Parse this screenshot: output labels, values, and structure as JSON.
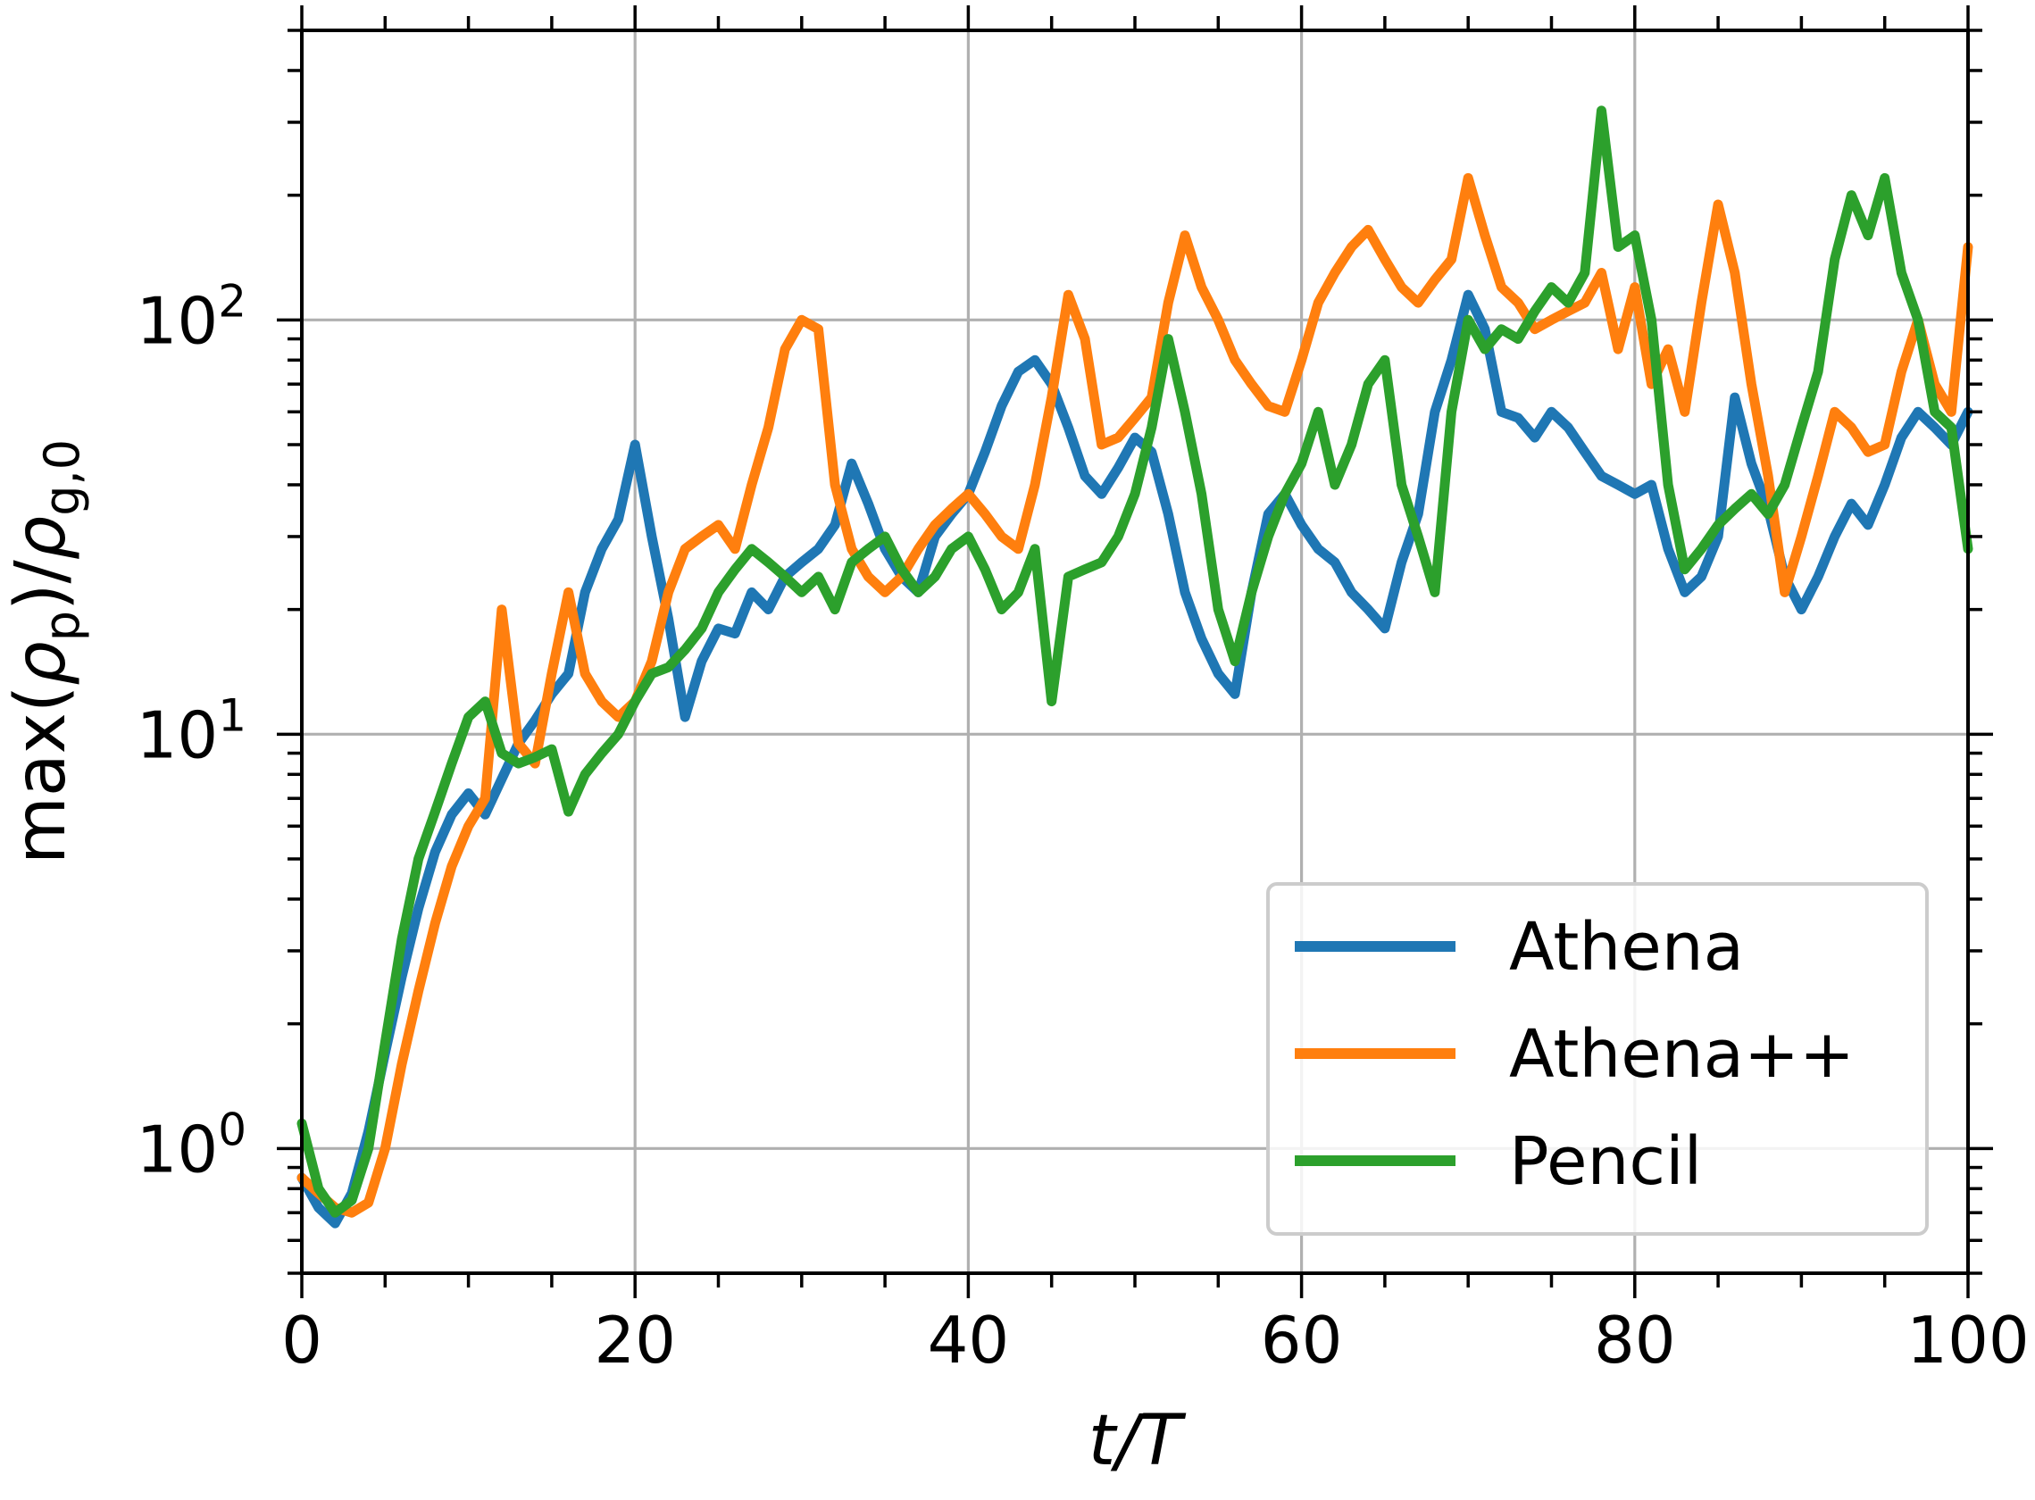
{
  "chart_data": {
    "type": "line",
    "title": "",
    "xlabel": "t/T",
    "ylabel": "max(ρ_p)/ρ_g,0",
    "xlim": [
      0,
      100
    ],
    "ylim": [
      0.5,
      500
    ],
    "yscale": "log",
    "grid": true,
    "legend_position": "lower-right",
    "x_ticks": [
      "0",
      "20",
      "40",
      "60",
      "80",
      "100"
    ],
    "y_ticks": [
      {
        "base": "10",
        "exp": "0"
      },
      {
        "base": "10",
        "exp": "1"
      },
      {
        "base": "10",
        "exp": "2"
      }
    ],
    "x": [
      0,
      1,
      2,
      3,
      4,
      5,
      6,
      7,
      8,
      9,
      10,
      11,
      12,
      13,
      14,
      15,
      16,
      17,
      18,
      19,
      20,
      21,
      22,
      23,
      24,
      25,
      26,
      27,
      28,
      29,
      30,
      31,
      32,
      33,
      34,
      35,
      36,
      37,
      38,
      39,
      40,
      41,
      42,
      43,
      44,
      45,
      46,
      47,
      48,
      49,
      50,
      51,
      52,
      53,
      54,
      55,
      56,
      57,
      58,
      59,
      60,
      61,
      62,
      63,
      64,
      65,
      66,
      67,
      68,
      69,
      70,
      71,
      72,
      73,
      74,
      75,
      76,
      77,
      78,
      79,
      80,
      81,
      82,
      83,
      84,
      85,
      86,
      87,
      88,
      89,
      90,
      91,
      92,
      93,
      94,
      95,
      96,
      97,
      98,
      99,
      100
    ],
    "series": [
      {
        "name": "Athena",
        "color": "#1f77b4",
        "values": [
          0.85,
          0.72,
          0.66,
          0.78,
          1.1,
          1.7,
          2.6,
          3.8,
          5.2,
          6.4,
          7.2,
          6.4,
          7.8,
          9.5,
          10.8,
          12.5,
          14.0,
          22.0,
          28.0,
          33.0,
          50.0,
          30.0,
          19.0,
          11.0,
          15.0,
          18.0,
          17.5,
          22.0,
          20.0,
          24.0,
          26.0,
          28.0,
          32.0,
          45.0,
          36.0,
          28.0,
          24.0,
          22.0,
          30.0,
          34.0,
          38.0,
          48.0,
          62.0,
          75.0,
          80.0,
          70.0,
          55.0,
          42.0,
          38.0,
          44.0,
          52.0,
          48.0,
          34.0,
          22.0,
          17.0,
          14.0,
          12.5,
          22.0,
          34.0,
          38.0,
          32.0,
          28.0,
          26.0,
          22.0,
          20.0,
          18.0,
          26.0,
          34.0,
          60.0,
          80.0,
          115.0,
          95.0,
          60.0,
          58.0,
          52.0,
          60.0,
          55.0,
          48.0,
          42.0,
          40.0,
          38.0,
          40.0,
          28.0,
          22.0,
          24.0,
          30.0,
          65.0,
          45.0,
          35.0,
          24.0,
          20.0,
          24.0,
          30.0,
          36.0,
          32.0,
          40.0,
          52.0,
          60.0,
          55.0,
          50.0,
          60.0
        ]
      },
      {
        "name": "Athena++",
        "color": "#ff7f0e",
        "values": [
          0.85,
          0.78,
          0.72,
          0.7,
          0.74,
          1.0,
          1.6,
          2.4,
          3.5,
          4.8,
          6.0,
          7.0,
          20.0,
          9.5,
          8.5,
          14.0,
          22.0,
          14.0,
          12.0,
          11.0,
          12.0,
          15.0,
          22.0,
          28.0,
          30.0,
          32.0,
          28.0,
          40.0,
          55.0,
          85.0,
          100.0,
          95.0,
          40.0,
          28.0,
          24.0,
          22.0,
          24.0,
          28.0,
          32.0,
          35.0,
          38.0,
          34.0,
          30.0,
          28.0,
          40.0,
          65.0,
          115.0,
          90.0,
          50.0,
          52.0,
          58.0,
          65.0,
          110.0,
          160.0,
          120.0,
          100.0,
          80.0,
          70.0,
          62.0,
          60.0,
          80.0,
          110.0,
          130.0,
          150.0,
          165.0,
          140.0,
          120.0,
          110.0,
          125.0,
          140.0,
          220.0,
          160.0,
          120.0,
          110.0,
          95.0,
          100.0,
          105.0,
          110.0,
          130.0,
          85.0,
          120.0,
          70.0,
          85.0,
          60.0,
          110.0,
          190.0,
          130.0,
          70.0,
          42.0,
          22.0,
          30.0,
          42.0,
          60.0,
          55.0,
          48.0,
          50.0,
          75.0,
          100.0,
          70.0,
          60.0,
          150.0
        ]
      },
      {
        "name": "Pencil",
        "color": "#2ca02c",
        "values": [
          1.15,
          0.8,
          0.7,
          0.75,
          1.0,
          1.8,
          3.2,
          5.0,
          6.5,
          8.5,
          11.0,
          12.0,
          9.0,
          8.5,
          8.8,
          9.2,
          6.5,
          8.0,
          9.0,
          10.0,
          12.0,
          14.0,
          14.5,
          16.0,
          18.0,
          22.0,
          25.0,
          28.0,
          26.0,
          24.0,
          22.0,
          24.0,
          20.0,
          26.0,
          28.0,
          30.0,
          25.0,
          22.0,
          24.0,
          28.0,
          30.0,
          25.0,
          20.0,
          22.0,
          28.0,
          12.0,
          24.0,
          25.0,
          26.0,
          30.0,
          38.0,
          55.0,
          90.0,
          60.0,
          38.0,
          20.0,
          15.0,
          22.0,
          30.0,
          38.0,
          45.0,
          60.0,
          40.0,
          50.0,
          70.0,
          80.0,
          40.0,
          30.0,
          22.0,
          60.0,
          100.0,
          85.0,
          95.0,
          90.0,
          105.0,
          120.0,
          110.0,
          130.0,
          320.0,
          150.0,
          160.0,
          100.0,
          40.0,
          25.0,
          28.0,
          32.0,
          35.0,
          38.0,
          34.0,
          40.0,
          55.0,
          75.0,
          140.0,
          200.0,
          160.0,
          220.0,
          130.0,
          100.0,
          60.0,
          55.0,
          28.0
        ]
      }
    ]
  }
}
